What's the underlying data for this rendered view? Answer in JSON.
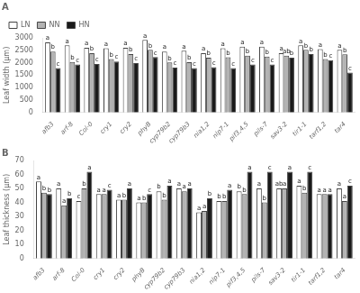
{
  "chart_data": [
    {
      "type": "bar",
      "title": "A",
      "categories": [
        "afb3",
        "arf-8",
        "Col-0",
        "cry1",
        "cry2",
        "phyB",
        "cyp79b2",
        "cyp79b3",
        "nia1,2",
        "nlp7-1",
        "pif3,4,5",
        "pils-7",
        "sav3-2",
        "tir1-1",
        "tarf1,2",
        "tar4"
      ],
      "ylabel": "Leaf width (μm)",
      "ylim": [
        0,
        3000
      ],
      "yticks": [
        0,
        500,
        1000,
        1500,
        2000,
        2500,
        3000
      ],
      "grid": false,
      "legend": "upper left",
      "series": [
        {
          "name": "LN",
          "color": "#ffffff",
          "values": [
            2820,
            2700,
            2600,
            2580,
            2600,
            2920,
            2450,
            2480,
            2380,
            2580,
            2650,
            2650,
            2380,
            2700,
            2550,
            2520
          ],
          "letters": [
            "a",
            "a",
            "a",
            "a",
            "a",
            "a",
            "a",
            "a",
            "a",
            "a",
            "a",
            "a",
            "a",
            "a",
            "a",
            "a"
          ]
        },
        {
          "name": "NN",
          "color": "#b3b3b3",
          "values": [
            2450,
            2030,
            2380,
            2150,
            2350,
            2520,
            2010,
            2020,
            2200,
            2220,
            2280,
            2250,
            2280,
            2520,
            2150,
            2340
          ],
          "letters": [
            "b",
            "b",
            "b",
            "b",
            "b",
            "b",
            "b",
            "b",
            "b",
            "b",
            "b",
            "b",
            "ab",
            "b",
            "b",
            "b"
          ]
        },
        {
          "name": "HN",
          "color": "#1a1a1a",
          "values": [
            1780,
            1930,
            1950,
            2050,
            1980,
            2230,
            1800,
            1780,
            1820,
            1780,
            1930,
            1930,
            2200,
            2350,
            2100,
            1600
          ],
          "letters": [
            "c",
            "c",
            "c",
            "c",
            "c",
            "c",
            "c",
            "c",
            "c",
            "c",
            "c",
            "c",
            "b",
            "b",
            "c",
            "c"
          ]
        }
      ]
    },
    {
      "type": "bar",
      "title": "B",
      "categories": [
        "afb3",
        "arf-8",
        "Col-0",
        "cry1",
        "cry2",
        "phyB",
        "cyp79b2",
        "cyp79b3",
        "nia1,2",
        "nlp7-1",
        "pif3,4,5",
        "pils-7",
        "sav3-2",
        "tir1-1",
        "tarf1,2",
        "tar4"
      ],
      "ylabel": "Leaf thickness (μm)",
      "ylim": [
        0,
        70
      ],
      "yticks": [
        0,
        10,
        20,
        30,
        40,
        50,
        60,
        70
      ],
      "grid": false,
      "series": [
        {
          "name": "LN",
          "color": "#ffffff",
          "values": [
            55,
            50,
            41,
            46,
            42,
            40,
            48,
            50,
            33,
            41,
            48,
            50,
            50,
            52,
            46,
            50
          ],
          "letters": [
            "a",
            "a",
            "c",
            "a",
            "a",
            "a",
            "b",
            "a",
            "a",
            "b",
            "b",
            "a",
            "ab",
            "a",
            "a",
            "a"
          ]
        },
        {
          "name": "NN",
          "color": "#b3b3b3",
          "values": [
            47,
            38,
            50,
            46,
            42,
            40,
            42,
            48,
            34,
            41,
            46,
            40,
            50,
            47,
            46,
            41
          ],
          "letters": [
            "b",
            "a",
            "b",
            "a",
            "b",
            "b",
            "b",
            "a",
            "a",
            "b",
            "b",
            "b",
            "a",
            "b",
            "a",
            "a"
          ]
        },
        {
          "name": "HN",
          "color": "#1a1a1a",
          "values": [
            46,
            43,
            62,
            49,
            50,
            46,
            52,
            50,
            43,
            49,
            62,
            62,
            62,
            62,
            46,
            52
          ],
          "letters": [
            "b",
            "b",
            "a",
            "c",
            "a",
            "c",
            "a",
            "a",
            "b",
            "a",
            "a",
            "c",
            "a",
            "c",
            "a",
            "c"
          ]
        }
      ]
    }
  ]
}
